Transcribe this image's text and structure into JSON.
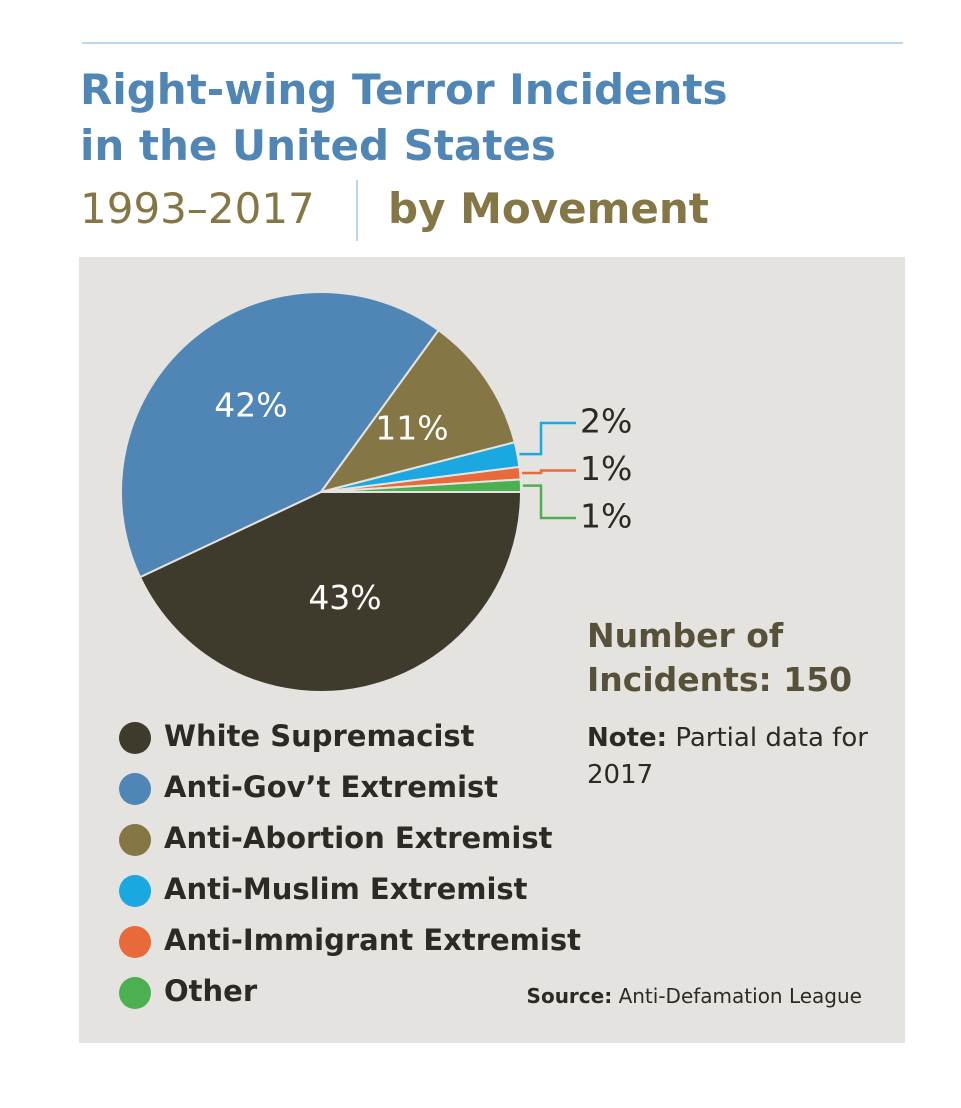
{
  "chart_data": {
    "type": "pie",
    "title": "Right-wing Terror Incidents in the United States",
    "subtitle": "1993–2017",
    "subtitle_bold": "by Movement",
    "categories": [
      "White Supremacist",
      "Anti-Gov’t Extremist",
      "Anti-Abortion Extremist",
      "Anti-Muslim Extremist",
      "Anti-Immigrant Extremist",
      "Other"
    ],
    "values": [
      43,
      42,
      11,
      2,
      1,
      1
    ],
    "value_labels": [
      "43%",
      "42%",
      "11%",
      "2%",
      "1%",
      "1%"
    ],
    "colors": [
      "#3e3a2c",
      "#4f86b5",
      "#857645",
      "#1ba8e0",
      "#e8693a",
      "#4caf50"
    ],
    "annotation": "Number of Incidents: 150",
    "note_label": "Note:",
    "note_text": "Partial data for 2017",
    "source_label": "Source:",
    "source_text": "Anti-Defamation League"
  }
}
